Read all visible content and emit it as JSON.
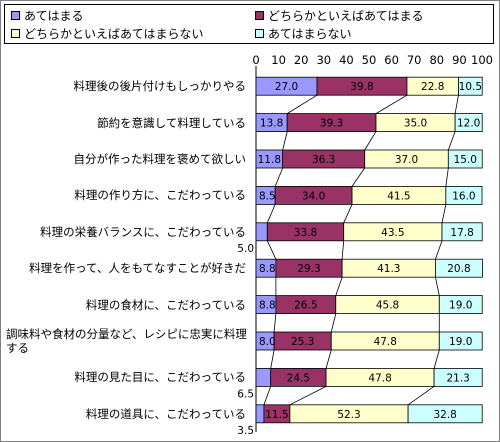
{
  "chart_data": {
    "type": "bar",
    "stacked": true,
    "orientation": "horizontal",
    "xlim": [
      0,
      100
    ],
    "xticks": [
      0,
      10,
      20,
      30,
      40,
      50,
      60,
      70,
      80,
      90,
      100
    ],
    "legend_position": "top",
    "categories": [
      "料理後の後片付けもしっかりやる",
      "節約を意識して料理している",
      "自分が作った料理を褒めて欲しい",
      "料理の作り方に、こだわっている",
      "料理の栄養バランスに、こだわっている",
      "料理を作って、人をもてなすことが好きだ",
      "料理の食材に、こだわっている",
      "調味料や食材の分量など、レシピに忠実に料理する",
      "料理の見た目に、こだわっている",
      "料理の道具に、こだわっている"
    ],
    "series": [
      {
        "name": "あてはまる",
        "color": "#9999ff",
        "values": [
          27.0,
          13.8,
          11.8,
          8.5,
          5.0,
          8.8,
          8.8,
          8.0,
          6.5,
          3.5
        ]
      },
      {
        "name": "どちらかといえばあてはまる",
        "color": "#993366",
        "values": [
          39.8,
          39.3,
          36.3,
          34.0,
          33.8,
          29.3,
          26.5,
          25.3,
          24.5,
          11.5
        ]
      },
      {
        "name": "どちらかといえばあてはまらない",
        "color": "#ffffcc",
        "values": [
          22.8,
          35.0,
          37.0,
          41.5,
          43.5,
          41.3,
          45.8,
          47.8,
          47.8,
          52.3
        ]
      },
      {
        "name": "あてはまらない",
        "color": "#ccffff",
        "values": [
          10.5,
          12.0,
          15.0,
          16.0,
          17.8,
          20.8,
          19.0,
          19.0,
          21.3,
          32.8
        ]
      }
    ],
    "labels": [
      [
        "27.0",
        "39.8",
        "22.8",
        "10.5"
      ],
      [
        "13.8",
        "39.3",
        "35.0",
        "12.0"
      ],
      [
        "11.8",
        "36.3",
        "37.0",
        "15.0"
      ],
      [
        "8.5",
        "34.0",
        "41.5",
        "16.0"
      ],
      [
        "5.0",
        "33.8",
        "43.5",
        "17.8"
      ],
      [
        "8.8",
        "29.3",
        "41.3",
        "20.8"
      ],
      [
        "8.8",
        "26.5",
        "45.8",
        "19.0"
      ],
      [
        "8.0",
        "25.3",
        "47.8",
        "19.0"
      ],
      [
        "6.5",
        "24.5",
        "47.8",
        "21.3"
      ],
      [
        "3.5",
        "11.5",
        "52.3",
        "32.8"
      ]
    ]
  }
}
